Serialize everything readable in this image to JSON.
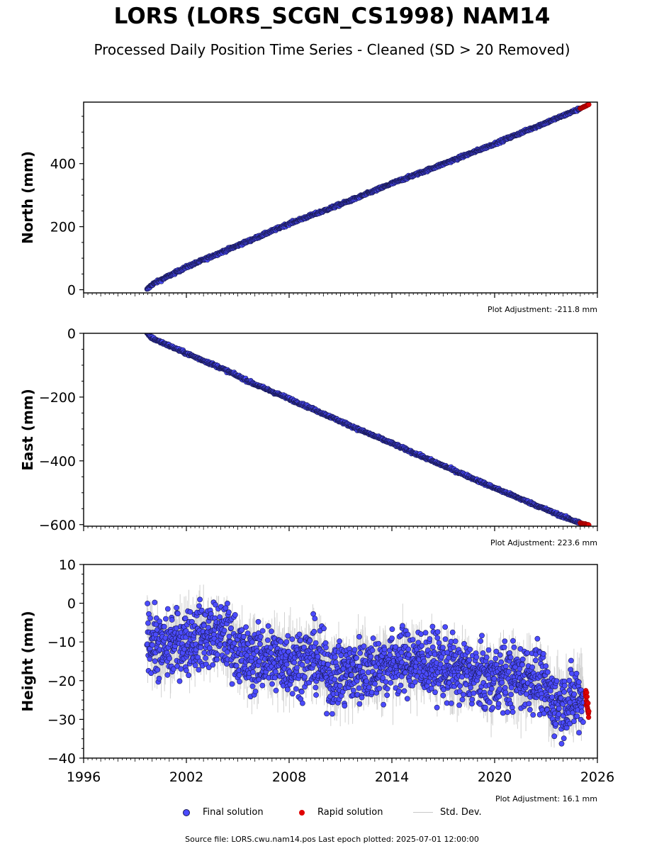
{
  "title": "LORS (LORS_SCGN_CS1998) NAM14",
  "subtitle": "Processed Daily Position Time Series - Cleaned (SD > 20 Removed)",
  "footer": "Source file: LORS.cwu.nam14.pos  Last epoch plotted: 2025-07-01 12:00:00",
  "legend": {
    "final_label": "Final solution",
    "rapid_label": "Rapid solution",
    "std_label": "Std. Dev."
  },
  "colors": {
    "final": "#4b4bff",
    "final_edge": "#1a1a55",
    "rapid": "#e00000",
    "std": "#9a9a9a"
  },
  "chart_data": [
    {
      "type": "scatter",
      "ylabel": "North (mm)",
      "xlim": [
        1996,
        2026
      ],
      "ylim": [
        -10,
        595
      ],
      "yticks": [
        0,
        200,
        400
      ],
      "xticks": [
        1996,
        2002,
        2008,
        2014,
        2020,
        2026
      ],
      "show_xtick_labels": false,
      "adjustment": "Plot Adjustment: -211.8 mm",
      "series": [
        {
          "name": "Final solution",
          "x": [
            1999.7,
            2000.0,
            2002.0,
            2004.0,
            2006.0,
            2008.0,
            2010.0,
            2012.0,
            2014.0,
            2016.0,
            2018.0,
            2020.0,
            2022.0,
            2024.0,
            2025.0
          ],
          "y": [
            0,
            17,
            72,
            118,
            163,
            210,
            250,
            292,
            337,
            378,
            420,
            463,
            508,
            552,
            575
          ]
        },
        {
          "name": "Rapid solution",
          "x": [
            2025.0,
            2025.5
          ],
          "y": [
            575,
            587
          ]
        }
      ]
    },
    {
      "type": "scatter",
      "ylabel": "East (mm)",
      "xlim": [
        1996,
        2026
      ],
      "ylim": [
        -605,
        0
      ],
      "yticks": [
        0,
        -200,
        -400,
        -600
      ],
      "xticks": [
        1996,
        2002,
        2008,
        2014,
        2020,
        2026
      ],
      "show_xtick_labels": false,
      "adjustment": "Plot Adjustment: 223.6 mm",
      "series": [
        {
          "name": "Final solution",
          "x": [
            1999.7,
            2000.0,
            2002.0,
            2004.0,
            2006.0,
            2008.0,
            2010.0,
            2012.0,
            2014.0,
            2016.0,
            2018.0,
            2020.0,
            2022.0,
            2024.0,
            2025.0
          ],
          "y": [
            0,
            -15,
            -63,
            -108,
            -160,
            -205,
            -252,
            -300,
            -345,
            -392,
            -438,
            -485,
            -530,
            -575,
            -595
          ]
        },
        {
          "name": "Rapid solution",
          "x": [
            2025.0,
            2025.5
          ],
          "y": [
            -595,
            -601
          ]
        }
      ]
    },
    {
      "type": "scatter",
      "ylabel": "Height (mm)",
      "xlim": [
        1996,
        2026
      ],
      "ylim": [
        -40,
        10
      ],
      "yticks": [
        10,
        0,
        -10,
        -20,
        -30,
        -40
      ],
      "xticks": [
        1996,
        2002,
        2008,
        2014,
        2020,
        2026
      ],
      "show_xtick_labels": true,
      "adjustment": "Plot Adjustment: 16.1 mm",
      "series": [
        {
          "name": "Final solution",
          "x": [
            1999.7,
            2000.5,
            2001.5,
            2002.5,
            2003.5,
            2004.5,
            2005.5,
            2006.5,
            2007.5,
            2008.5,
            2009.5,
            2010.5,
            2011.5,
            2012.5,
            2013.5,
            2014.5,
            2015.5,
            2016.5,
            2017.5,
            2018.5,
            2019.5,
            2020.5,
            2021.5,
            2022.5,
            2023.3,
            2024.0,
            2024.6,
            2025.2
          ],
          "y": [
            -8,
            -12,
            -10,
            -9,
            -8,
            -9,
            -15,
            -14,
            -15,
            -15,
            -14,
            -19,
            -18,
            -17,
            -16,
            -15,
            -15,
            -16,
            -17,
            -18,
            -20,
            -19,
            -19,
            -19,
            -25,
            -26,
            -25,
            -24
          ]
        },
        {
          "name": "Rapid solution",
          "x": [
            2025.3,
            2025.4,
            2025.5
          ],
          "y": [
            -23,
            -26,
            -29
          ]
        }
      ]
    }
  ]
}
